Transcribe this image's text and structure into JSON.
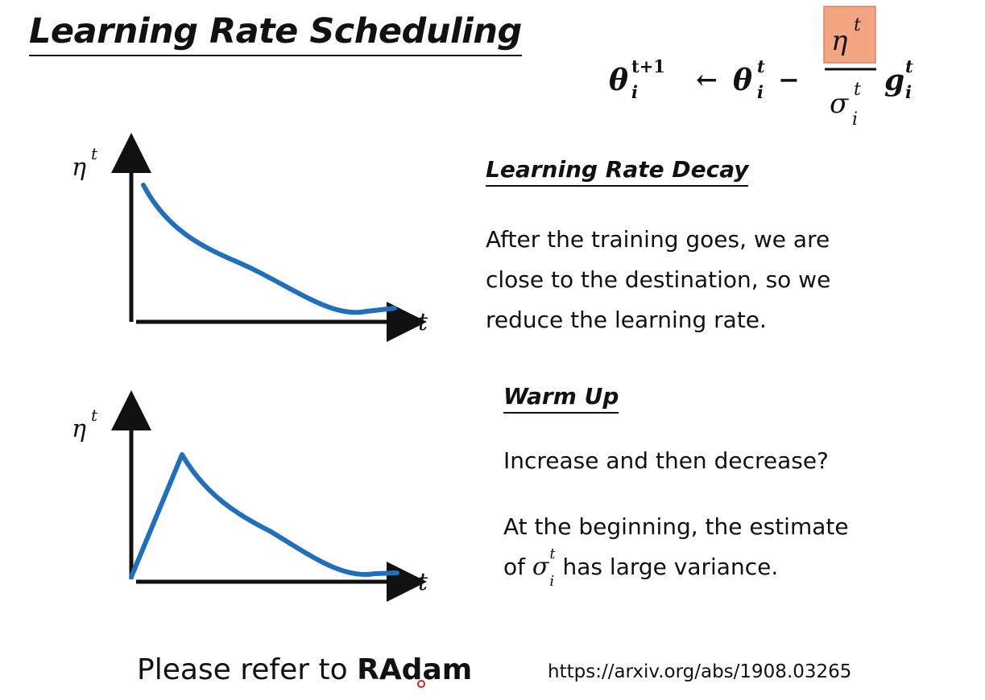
{
  "slide": {
    "title": "Learning Rate Scheduling",
    "formula": {
      "theta": "θ",
      "sup_t1": "t+1",
      "sup_t": "t",
      "sub_i": "i",
      "arrow": "←",
      "minus": "−",
      "eta": "η",
      "sigma": "σ",
      "g": "g",
      "highlight_color": "#f4a582"
    },
    "graph_decay": {
      "y_label": "η",
      "y_label_sup": "t",
      "x_label": "t"
    },
    "graph_warmup": {
      "y_label": "η",
      "y_label_sup": "t",
      "x_label": "t"
    },
    "decay": {
      "heading": "Learning Rate Decay",
      "lines": [
        "After the training goes, we are",
        "close to the destination, so we",
        "reduce the learning rate."
      ]
    },
    "warmup": {
      "heading": "Warm Up",
      "question": "Increase and then decrease?",
      "line1": "At the beginning, the estimate",
      "line2_prefix": "of",
      "sigma": "σ",
      "sigma_sup": "t",
      "sigma_sub": "i",
      "line2_suffix": "has large variance."
    },
    "footer": {
      "prefix": "Please refer to",
      "bold": "RAdam",
      "url": "https://arxiv.org/abs/1908.03265"
    },
    "curve_color": "#1f6fbf"
  }
}
